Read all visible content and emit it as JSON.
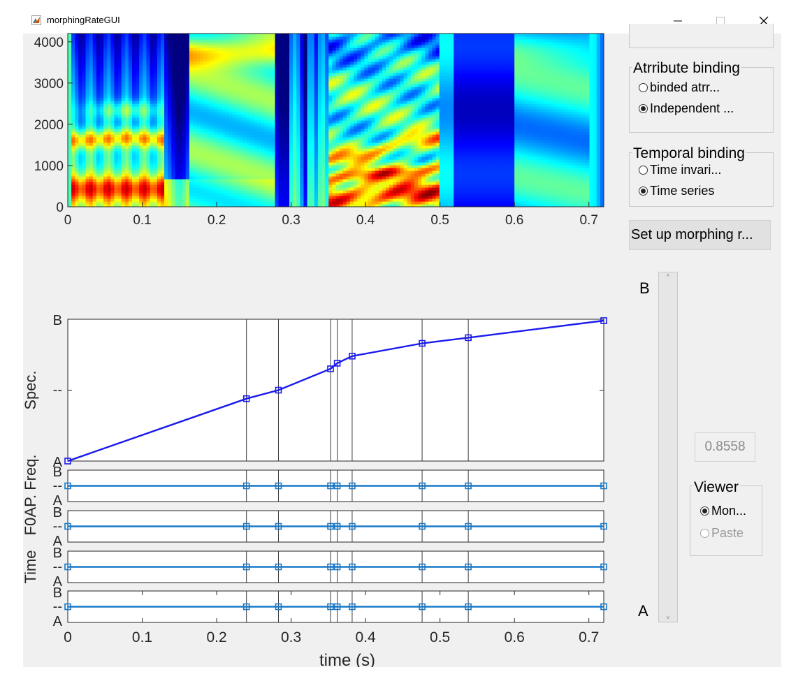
{
  "window": {
    "title": "morphingRateGUI",
    "minimize_glyph": "—",
    "maximize_glyph": "☐",
    "close_glyph": "✕"
  },
  "attribute_binding": {
    "title": "Atrribute binding",
    "options": [
      {
        "label": "binded atrr...",
        "selected": false
      },
      {
        "label": "Independent ...",
        "selected": true
      }
    ]
  },
  "temporal_binding": {
    "title": "Temporal binding",
    "options": [
      {
        "label": "Time invari...",
        "selected": false
      },
      {
        "label": "Time series",
        "selected": true
      }
    ]
  },
  "setup_button_label": "Set up morphing r...",
  "slider": {
    "top_label": "B",
    "bottom_label": "A",
    "value": 0.8558
  },
  "rate_value": "0.8558",
  "viewer": {
    "title": "Viewer",
    "options": [
      {
        "label": "Mon...",
        "selected": true,
        "enabled": true
      },
      {
        "label": "Paste",
        "selected": false,
        "enabled": false
      }
    ]
  },
  "spectrogram": {
    "y_ticks": [
      "0",
      "1000",
      "2000",
      "3000",
      "4000"
    ],
    "x_ticks": [
      "0",
      "0.1",
      "0.2",
      "0.3",
      "0.4",
      "0.5",
      "0.6",
      "0.7"
    ]
  },
  "morph_plots": {
    "x_ticks": [
      "0",
      "0.1",
      "0.2",
      "0.3",
      "0.4",
      "0.5",
      "0.6",
      "0.7"
    ],
    "x_label": "time (s)",
    "level_labels": {
      "top": "B",
      "mid": "--",
      "bottom": "A"
    },
    "panels": [
      {
        "ylabel": "Spec."
      },
      {
        "ylabel": "AP. Freq."
      },
      {
        "ylabel": "F0"
      },
      {
        "ylabel": "Time"
      }
    ],
    "anchor_times": [
      0,
      0.24,
      0.283,
      0.353,
      0.362,
      0.382,
      0.476,
      0.538,
      0.72
    ]
  },
  "chart_data": [
    {
      "type": "heatmap",
      "xlabel": "",
      "ylabel": "",
      "xlim": [
        0,
        0.72
      ],
      "ylim": [
        0,
        4200
      ],
      "x_ticks": [
        0,
        0.1,
        0.2,
        0.3,
        0.4,
        0.5,
        0.6,
        0.7
      ],
      "y_ticks": [
        0,
        1000,
        2000,
        3000,
        4000
      ],
      "colormap": "jet",
      "grid": false
    },
    {
      "type": "line",
      "ylabel": "Spec.",
      "xlim": [
        0,
        0.72
      ],
      "ylim": [
        0,
        1
      ],
      "series": [
        {
          "x": [
            0,
            0.24,
            0.283,
            0.353,
            0.362,
            0.382,
            0.476,
            0.538,
            0.72
          ],
          "values": [
            0.0,
            0.44,
            0.5,
            0.65,
            0.69,
            0.74,
            0.83,
            0.87,
            0.99
          ],
          "color": "#1a1aee",
          "marker": "square"
        }
      ]
    },
    {
      "type": "line",
      "ylabel": "AP. Freq.",
      "xlim": [
        0,
        0.72
      ],
      "ylim": [
        0,
        1
      ],
      "series": [
        {
          "x": [
            0,
            0.24,
            0.283,
            0.353,
            0.362,
            0.382,
            0.476,
            0.538,
            0.72
          ],
          "values": [
            0.5,
            0.5,
            0.5,
            0.5,
            0.5,
            0.5,
            0.5,
            0.5,
            0.5
          ],
          "color": "#1878c8",
          "marker": "square"
        }
      ]
    },
    {
      "type": "line",
      "ylabel": "F0",
      "xlim": [
        0,
        0.72
      ],
      "ylim": [
        0,
        1
      ],
      "series": [
        {
          "x": [
            0,
            0.24,
            0.283,
            0.353,
            0.362,
            0.382,
            0.476,
            0.538,
            0.72
          ],
          "values": [
            0.5,
            0.5,
            0.5,
            0.5,
            0.5,
            0.5,
            0.5,
            0.5,
            0.5
          ],
          "color": "#1878c8",
          "marker": "square"
        }
      ]
    },
    {
      "type": "line",
      "ylabel": "Time",
      "xlabel": "time (s)",
      "xlim": [
        0,
        0.72
      ],
      "ylim": [
        0,
        1
      ],
      "series": [
        {
          "x": [
            0,
            0.24,
            0.283,
            0.353,
            0.362,
            0.382,
            0.476,
            0.538,
            0.72
          ],
          "values": [
            0.5,
            0.5,
            0.5,
            0.5,
            0.5,
            0.5,
            0.5,
            0.5,
            0.5
          ],
          "color": "#1878c8",
          "marker": "square"
        }
      ]
    }
  ]
}
